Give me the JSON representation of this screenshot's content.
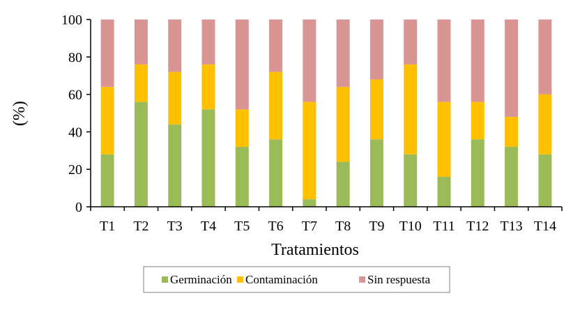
{
  "chart_data": {
    "type": "bar",
    "stacked": true,
    "xlabel": "Tratamientos",
    "ylabel": "(%)",
    "ylim": [
      0,
      100
    ],
    "yticks": [
      0,
      20,
      40,
      60,
      80,
      100
    ],
    "grid": false,
    "legend_position": "bottom",
    "categories": [
      "T1",
      "T2",
      "T3",
      "T4",
      "T5",
      "T6",
      "T7",
      "T8",
      "T9",
      "T10",
      "T11",
      "T12",
      "T13",
      "T14"
    ],
    "series": [
      {
        "name": "Germinación",
        "color": "#9BBB59",
        "values": [
          28,
          56,
          44,
          52,
          32,
          36,
          4,
          24,
          36,
          28,
          16,
          36,
          32,
          28
        ]
      },
      {
        "name": "Contaminación",
        "color": "#FFC000",
        "values": [
          36,
          20,
          28,
          24,
          20,
          36,
          52,
          40,
          32,
          48,
          40,
          20,
          16,
          32
        ]
      },
      {
        "name": "Sin respuesta",
        "color": "#D99594",
        "values": [
          36,
          24,
          28,
          24,
          48,
          28,
          44,
          36,
          32,
          24,
          44,
          44,
          52,
          40
        ]
      }
    ]
  }
}
